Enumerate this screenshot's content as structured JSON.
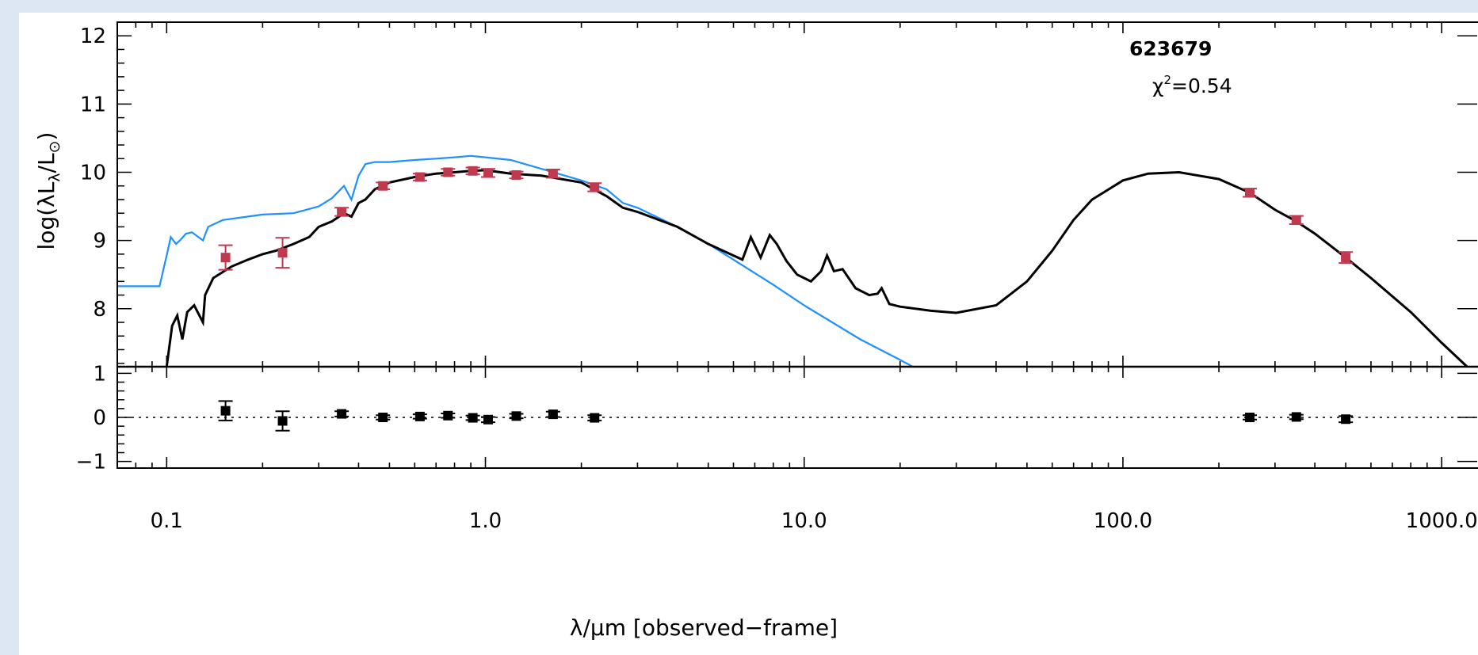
{
  "chart_data": {
    "type": "scatter",
    "annotation": {
      "name": "623679",
      "chi2_prefix": "χ",
      "chi2_sup": "2",
      "chi2_value": "=0.54"
    },
    "xlabel": "λ/μm [observed−frame]",
    "ylabel": "log(λL",
    "ylabel_sub": "λ",
    "ylabel_end": "/L",
    "ylabel_sun": "⊙",
    "ylabel_close": ")",
    "x_scale": "log",
    "xlim": [
      0.07,
      1300
    ],
    "top_panel": {
      "ylim": [
        7.15,
        12.2
      ],
      "yticks": [
        8,
        9,
        10,
        11,
        12
      ],
      "ytick_labels": [
        "8",
        "9",
        "10",
        "11",
        "12"
      ],
      "observed": {
        "color": "#c0394f",
        "points": [
          {
            "x": 0.153,
            "y": 8.75,
            "err": 0.18
          },
          {
            "x": 0.231,
            "y": 8.82,
            "err": 0.22
          },
          {
            "x": 0.354,
            "y": 9.42,
            "err": 0.06
          },
          {
            "x": 0.477,
            "y": 9.8,
            "err": 0.05
          },
          {
            "x": 0.623,
            "y": 9.93,
            "err": 0.05
          },
          {
            "x": 0.763,
            "y": 10.0,
            "err": 0.05
          },
          {
            "x": 0.913,
            "y": 10.02,
            "err": 0.05
          },
          {
            "x": 1.02,
            "y": 9.99,
            "err": 0.06
          },
          {
            "x": 1.25,
            "y": 9.96,
            "err": 0.05
          },
          {
            "x": 1.63,
            "y": 9.98,
            "err": 0.06
          },
          {
            "x": 2.2,
            "y": 9.78,
            "err": 0.06
          },
          {
            "x": 250,
            "y": 9.7,
            "err": 0.06
          },
          {
            "x": 350,
            "y": 9.3,
            "err": 0.06
          },
          {
            "x": 500,
            "y": 8.75,
            "err": 0.08
          }
        ]
      },
      "model_total": {
        "color": "#000000",
        "x": [
          0.1,
          0.104,
          0.108,
          0.112,
          0.116,
          0.122,
          0.13,
          0.132,
          0.14,
          0.16,
          0.18,
          0.2,
          0.22,
          0.25,
          0.28,
          0.3,
          0.33,
          0.36,
          0.38,
          0.4,
          0.42,
          0.45,
          0.5,
          0.6,
          0.7,
          0.8,
          0.9,
          1.0,
          1.2,
          1.5,
          2.0,
          2.4,
          2.7,
          3.0,
          4.0,
          5.0,
          6.0,
          6.4,
          6.8,
          7.3,
          7.8,
          8.2,
          8.8,
          9.5,
          10.5,
          11.3,
          11.8,
          12.4,
          13.2,
          14.5,
          16.0,
          17.0,
          17.5,
          18.5,
          20.0,
          25.0,
          30.0,
          40.0,
          50.0,
          60.0,
          70.0,
          80.0,
          100.0,
          120.0,
          150.0,
          200.0,
          250.0,
          300.0,
          350.0,
          400.0,
          500.0,
          600.0,
          800.0,
          1000.0,
          1300.0
        ],
        "y": [
          7.15,
          7.75,
          7.9,
          7.55,
          7.95,
          8.05,
          7.8,
          8.2,
          8.45,
          8.62,
          8.72,
          8.8,
          8.85,
          8.95,
          9.05,
          9.2,
          9.28,
          9.4,
          9.35,
          9.55,
          9.6,
          9.75,
          9.85,
          9.93,
          9.98,
          10.0,
          10.02,
          10.03,
          9.98,
          9.95,
          9.85,
          9.65,
          9.48,
          9.42,
          9.2,
          8.95,
          8.78,
          8.72,
          9.05,
          8.75,
          9.08,
          8.95,
          8.7,
          8.5,
          8.4,
          8.55,
          8.78,
          8.55,
          8.58,
          8.3,
          8.2,
          8.22,
          8.3,
          8.07,
          8.03,
          7.97,
          7.94,
          8.05,
          8.4,
          8.85,
          9.3,
          9.6,
          9.88,
          9.98,
          10.0,
          9.9,
          9.7,
          9.45,
          9.28,
          9.1,
          8.75,
          8.45,
          7.95,
          7.5,
          7.0
        ]
      },
      "model_stellar": {
        "color": "#1e90ff",
        "x": [
          0.07,
          0.095,
          0.1,
          0.103,
          0.107,
          0.11,
          0.115,
          0.12,
          0.13,
          0.135,
          0.15,
          0.2,
          0.25,
          0.3,
          0.33,
          0.36,
          0.38,
          0.4,
          0.42,
          0.45,
          0.5,
          0.6,
          0.7,
          0.8,
          0.9,
          1.0,
          1.2,
          1.5,
          2.0,
          2.4,
          2.7,
          3.0,
          4.0,
          5.0,
          6.0,
          8.0,
          10.0,
          15.0,
          20.0,
          24.0
        ],
        "y": [
          8.33,
          8.33,
          8.78,
          9.05,
          8.95,
          9.0,
          9.1,
          9.12,
          9.0,
          9.2,
          9.3,
          9.38,
          9.4,
          9.5,
          9.62,
          9.8,
          9.6,
          9.95,
          10.12,
          10.15,
          10.15,
          10.18,
          10.2,
          10.22,
          10.24,
          10.22,
          10.18,
          10.05,
          9.88,
          9.75,
          9.55,
          9.48,
          9.2,
          8.95,
          8.72,
          8.35,
          8.05,
          7.55,
          7.25,
          7.05
        ]
      }
    },
    "bottom_panel": {
      "ylim": [
        -1.15,
        1.15
      ],
      "yticks": [
        -1,
        0,
        1
      ],
      "ytick_labels": [
        "−1",
        "0",
        "1"
      ],
      "residuals": {
        "color": "#000000",
        "points": [
          {
            "x": 0.153,
            "y": 0.15,
            "err": 0.22
          },
          {
            "x": 0.231,
            "y": -0.08,
            "err": 0.22
          },
          {
            "x": 0.354,
            "y": 0.08,
            "err": 0.06
          },
          {
            "x": 0.477,
            "y": 0.0,
            "err": 0.05
          },
          {
            "x": 0.623,
            "y": 0.02,
            "err": 0.05
          },
          {
            "x": 0.763,
            "y": 0.04,
            "err": 0.05
          },
          {
            "x": 0.913,
            "y": -0.01,
            "err": 0.05
          },
          {
            "x": 1.02,
            "y": -0.05,
            "err": 0.06
          },
          {
            "x": 1.25,
            "y": 0.03,
            "err": 0.05
          },
          {
            "x": 1.63,
            "y": 0.07,
            "err": 0.06
          },
          {
            "x": 2.2,
            "y": -0.01,
            "err": 0.06
          },
          {
            "x": 250,
            "y": 0.0,
            "err": 0.05
          },
          {
            "x": 350,
            "y": 0.01,
            "err": 0.05
          },
          {
            "x": 500,
            "y": -0.04,
            "err": 0.07
          }
        ]
      }
    },
    "xticks_major": [
      0.1,
      1.0,
      10.0,
      100.0,
      1000.0
    ],
    "xtick_labels": [
      "0.1",
      "1.0",
      "10.0",
      "100.0",
      "1000.0"
    ]
  }
}
